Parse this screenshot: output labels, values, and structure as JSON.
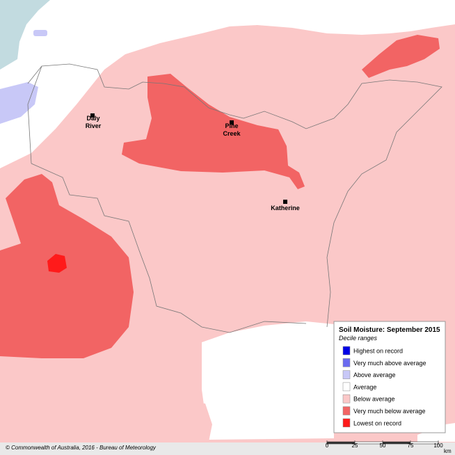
{
  "legend": {
    "title": "Soil Moisture: September 2015",
    "subtitle": "Decile ranges",
    "items": [
      {
        "label": "Highest on record",
        "color": "#0000e6"
      },
      {
        "label": "Very much above average",
        "color": "#6b6bf0"
      },
      {
        "label": "Above average",
        "color": "#c8c8f7"
      },
      {
        "label": "Average",
        "color": "#ffffff"
      },
      {
        "label": "Below average",
        "color": "#fbc8c8"
      },
      {
        "label": "Very much below average",
        "color": "#f26464"
      },
      {
        "label": "Lowest on record",
        "color": "#ff1a1a"
      }
    ]
  },
  "places": [
    {
      "lines": [
        "Daly",
        "River"
      ]
    },
    {
      "lines": [
        "Pine",
        "Creek"
      ]
    },
    {
      "lines": [
        "Katherine"
      ]
    }
  ],
  "copyright": "© Commonwealth of Australia, 2016 - Bureau of Meteorology",
  "scale": {
    "ticks": [
      0,
      25,
      50,
      75,
      100
    ],
    "unit": "km"
  }
}
